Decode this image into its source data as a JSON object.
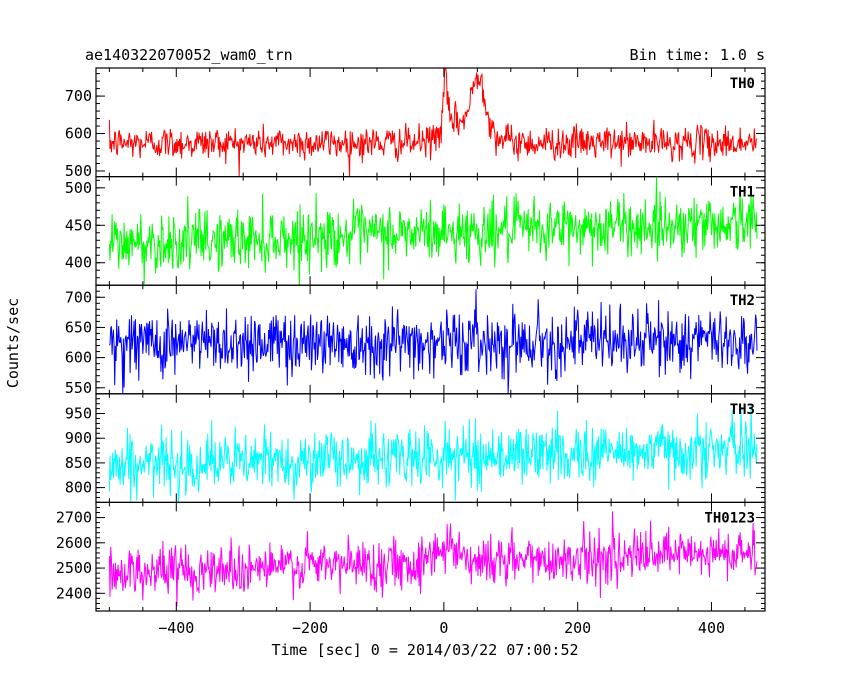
{
  "chart_data": {
    "type": "line",
    "header_left": "ae140322070052_wam0_trn",
    "header_right": "Bin time: 1.0 s",
    "xlabel": "Time [sec] 0 = 2014/03/22 07:00:52",
    "ylabel": "Counts/sec",
    "xlim": [
      -520,
      480
    ],
    "x_start": -500,
    "x_end": 468,
    "x_ticks": [
      -400,
      -200,
      0,
      200,
      400
    ],
    "x_tick_labels": [
      "−400",
      "−200",
      "0",
      "200",
      "400"
    ],
    "panels": [
      {
        "name": "TH0",
        "color": "#ff0000",
        "ylim": [
          485,
          775
        ],
        "y_ticks": [
          500,
          600,
          700
        ],
        "y_tick_labels": [
          "500",
          "600",
          "700"
        ],
        "base_start": 575,
        "base_end": 575,
        "noise": 22,
        "features": [
          {
            "x": 2,
            "width": 4,
            "height": 130
          },
          {
            "x": 10,
            "width": 20,
            "height": 35
          },
          {
            "x": 52,
            "width": 14,
            "height": 145
          },
          {
            "x": 40,
            "width": 40,
            "height": 40
          }
        ]
      },
      {
        "name": "TH1",
        "color": "#00ff00",
        "ylim": [
          370,
          515
        ],
        "y_ticks": [
          400,
          450,
          500
        ],
        "y_tick_labels": [
          "400",
          "450",
          "500"
        ],
        "base_start": 425,
        "base_end": 455,
        "noise": 20,
        "features": []
      },
      {
        "name": "TH2",
        "color": "#0000ff",
        "ylim": [
          540,
          720
        ],
        "y_ticks": [
          550,
          600,
          650,
          700
        ],
        "y_tick_labels": [
          "550",
          "600",
          "650",
          "700"
        ],
        "base_start": 625,
        "base_end": 628,
        "noise": 27,
        "features": []
      },
      {
        "name": "TH3",
        "color": "#00ffff",
        "ylim": [
          770,
          990
        ],
        "y_ticks": [
          800,
          850,
          900,
          950
        ],
        "y_tick_labels": [
          "800",
          "850",
          "900",
          "950"
        ],
        "base_start": 845,
        "base_end": 880,
        "noise": 30,
        "features": []
      },
      {
        "name": "TH0123",
        "color": "#ff00ff",
        "ylim": [
          2330,
          2760
        ],
        "y_ticks": [
          2400,
          2500,
          2600,
          2700
        ],
        "y_tick_labels": [
          "2400",
          "2500",
          "2600",
          "2700"
        ],
        "base_start": 2485,
        "base_end": 2560,
        "noise": 50,
        "features": [
          {
            "x": 5,
            "width": 25,
            "height": 70
          }
        ]
      }
    ]
  }
}
